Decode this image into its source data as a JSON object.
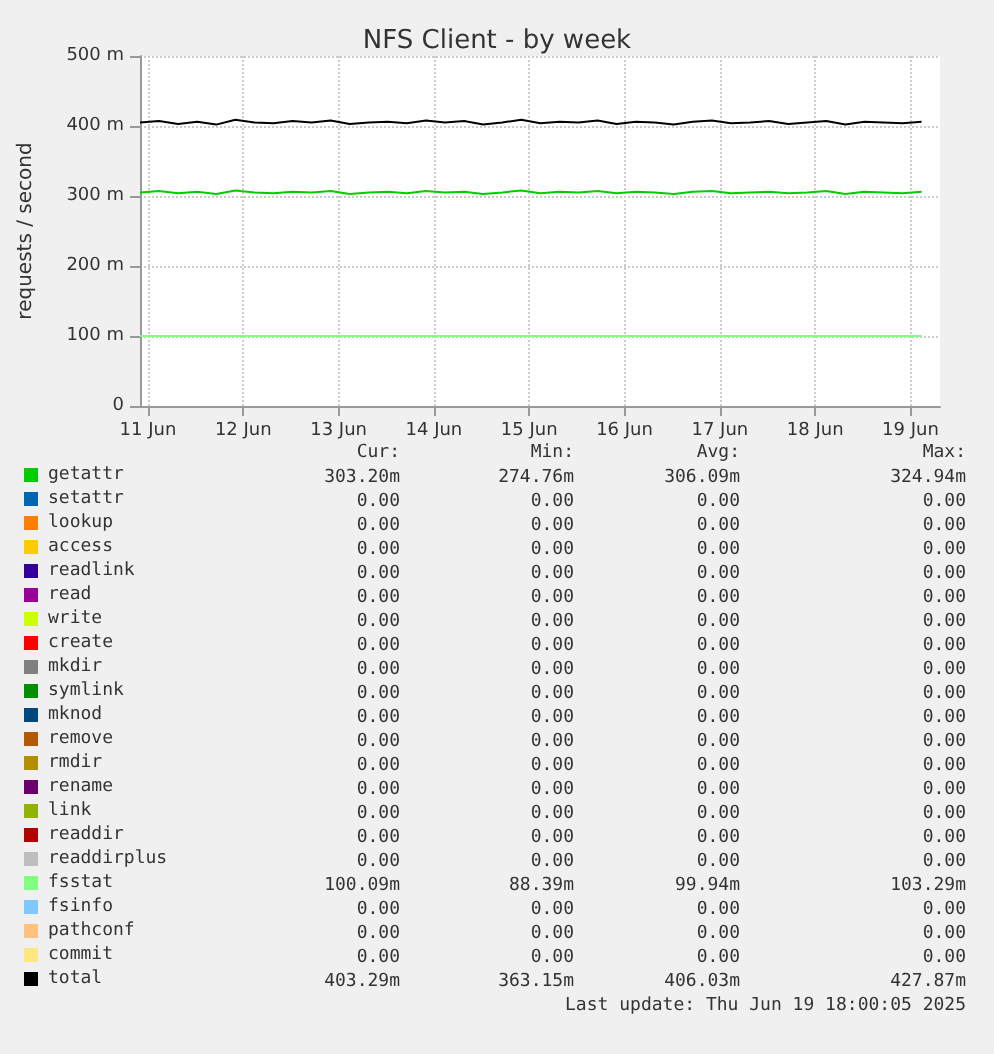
{
  "chart_data": {
    "type": "line",
    "title": "NFS Client - by week",
    "ylabel": "requests / second",
    "x": [
      "--06-10T22:00",
      "--06-11T02:48",
      "--06-11T07:36",
      "--06-11T12:24",
      "--06-11T17:12",
      "--06-11T22:00",
      "--06-12T02:48",
      "--06-12T07:36",
      "--06-12T12:24",
      "--06-12T17:12",
      "--06-12T22:00",
      "--06-13T02:48",
      "--06-13T07:36",
      "--06-13T12:24",
      "--06-13T17:12",
      "--06-13T22:00",
      "--06-14T02:48",
      "--06-14T07:36",
      "--06-14T12:24",
      "--06-14T17:12",
      "--06-14T22:00",
      "--06-15T02:48",
      "--06-15T07:36",
      "--06-15T12:24",
      "--06-15T17:12",
      "--06-15T22:00",
      "--06-16T02:48",
      "--06-16T07:36",
      "--06-16T12:24",
      "--06-16T17:12",
      "--06-16T22:00",
      "--06-17T02:48",
      "--06-17T07:36",
      "--06-17T12:24",
      "--06-17T17:12",
      "--06-17T22:00",
      "--06-18T02:48",
      "--06-18T07:36",
      "--06-18T12:24",
      "--06-18T17:12",
      "--06-18T22:00",
      "--06-19T02:48"
    ],
    "xlim": [
      "--06-10T22:00",
      "--06-19T07:26"
    ],
    "xticks": [
      {
        "value": "--06-11",
        "label": "11 Jun"
      },
      {
        "value": "--06-12",
        "label": "12 Jun"
      },
      {
        "value": "--06-13",
        "label": "13 Jun"
      },
      {
        "value": "--06-14",
        "label": "14 Jun"
      },
      {
        "value": "--06-15",
        "label": "15 Jun"
      },
      {
        "value": "--06-16",
        "label": "16 Jun"
      },
      {
        "value": "--06-17",
        "label": "17 Jun"
      },
      {
        "value": "--06-18",
        "label": "18 Jun"
      },
      {
        "value": "--06-19",
        "label": "19 Jun"
      }
    ],
    "ylim": [
      0,
      500
    ],
    "yticks": [
      0,
      {
        "value": 100,
        "label": "100 m"
      },
      {
        "value": 200,
        "label": "200 m"
      },
      {
        "value": 300,
        "label": "300 m"
      },
      {
        "value": 400,
        "label": "400 m"
      },
      {
        "value": 500,
        "label": "500 m"
      }
    ],
    "grid": true,
    "legend": "bottom",
    "series": [
      {
        "name": "getattr",
        "color": "#00cc00",
        "values": [
          305,
          307,
          304,
          306,
          303,
          308,
          305,
          304,
          306,
          305,
          307,
          303,
          305,
          306,
          304,
          307,
          305,
          306,
          303,
          305,
          308,
          304,
          306,
          305,
          307,
          304,
          306,
          305,
          303,
          306,
          307,
          304,
          305,
          306,
          304,
          305,
          307,
          303,
          306,
          305,
          304,
          306
        ]
      },
      {
        "name": "setattr",
        "color": "#0066b3",
        "values": [
          null,
          null,
          null,
          null,
          null,
          null,
          null,
          null,
          null,
          null,
          null,
          null,
          null,
          null,
          null,
          null,
          null,
          null,
          null,
          null,
          null,
          null,
          null,
          null,
          null,
          null,
          null,
          null,
          null,
          null,
          null,
          null,
          null,
          null,
          null,
          null,
          null,
          null,
          null,
          null,
          null,
          null
        ]
      },
      {
        "name": "lookup",
        "color": "#ff8000",
        "values": [
          null,
          null,
          null,
          null,
          null,
          null,
          null,
          null,
          null,
          null,
          null,
          null,
          null,
          null,
          null,
          null,
          null,
          null,
          null,
          null,
          null,
          null,
          null,
          null,
          null,
          null,
          null,
          null,
          null,
          null,
          null,
          null,
          null,
          null,
          null,
          null,
          null,
          null,
          null,
          null,
          null,
          null
        ]
      },
      {
        "name": "access",
        "color": "#ffcc00",
        "values": [
          null,
          null,
          null,
          null,
          null,
          null,
          null,
          null,
          null,
          null,
          null,
          null,
          null,
          null,
          null,
          null,
          null,
          null,
          null,
          null,
          null,
          null,
          null,
          null,
          null,
          null,
          null,
          null,
          null,
          null,
          null,
          null,
          null,
          null,
          null,
          null,
          null,
          null,
          null,
          null,
          null,
          null
        ]
      },
      {
        "name": "readlink",
        "color": "#330099",
        "values": [
          null,
          null,
          null,
          null,
          null,
          null,
          null,
          null,
          null,
          null,
          null,
          null,
          null,
          null,
          null,
          null,
          null,
          null,
          null,
          null,
          null,
          null,
          null,
          null,
          null,
          null,
          null,
          null,
          null,
          null,
          null,
          null,
          null,
          null,
          null,
          null,
          null,
          null,
          null,
          null,
          null,
          null
        ]
      },
      {
        "name": "read",
        "color": "#990099",
        "values": [
          null,
          null,
          null,
          null,
          null,
          null,
          null,
          null,
          null,
          null,
          null,
          null,
          null,
          null,
          null,
          null,
          null,
          null,
          null,
          null,
          null,
          null,
          null,
          null,
          null,
          null,
          null,
          null,
          null,
          null,
          null,
          null,
          null,
          null,
          null,
          null,
          null,
          null,
          null,
          null,
          null,
          null
        ]
      },
      {
        "name": "write",
        "color": "#ccff00",
        "values": [
          null,
          null,
          null,
          null,
          null,
          null,
          null,
          null,
          null,
          null,
          null,
          null,
          null,
          null,
          null,
          null,
          null,
          null,
          null,
          null,
          null,
          null,
          null,
          null,
          null,
          null,
          null,
          null,
          null,
          null,
          null,
          null,
          null,
          null,
          null,
          null,
          null,
          null,
          null,
          null,
          null,
          null
        ]
      },
      {
        "name": "create",
        "color": "#ff0000",
        "values": [
          null,
          null,
          null,
          null,
          null,
          null,
          null,
          null,
          null,
          null,
          null,
          null,
          null,
          null,
          null,
          null,
          null,
          null,
          null,
          null,
          null,
          null,
          null,
          null,
          null,
          null,
          null,
          null,
          null,
          null,
          null,
          null,
          null,
          null,
          null,
          null,
          null,
          null,
          null,
          null,
          null,
          null
        ]
      },
      {
        "name": "mkdir",
        "color": "#808080",
        "values": [
          null,
          null,
          null,
          null,
          null,
          null,
          null,
          null,
          null,
          null,
          null,
          null,
          null,
          null,
          null,
          null,
          null,
          null,
          null,
          null,
          null,
          null,
          null,
          null,
          null,
          null,
          null,
          null,
          null,
          null,
          null,
          null,
          null,
          null,
          null,
          null,
          null,
          null,
          null,
          null,
          null,
          null
        ]
      },
      {
        "name": "symlink",
        "color": "#008f00",
        "values": [
          null,
          null,
          null,
          null,
          null,
          null,
          null,
          null,
          null,
          null,
          null,
          null,
          null,
          null,
          null,
          null,
          null,
          null,
          null,
          null,
          null,
          null,
          null,
          null,
          null,
          null,
          null,
          null,
          null,
          null,
          null,
          null,
          null,
          null,
          null,
          null,
          null,
          null,
          null,
          null,
          null,
          null
        ]
      },
      {
        "name": "mknod",
        "color": "#00487d",
        "values": [
          null,
          null,
          null,
          null,
          null,
          null,
          null,
          null,
          null,
          null,
          null,
          null,
          null,
          null,
          null,
          null,
          null,
          null,
          null,
          null,
          null,
          null,
          null,
          null,
          null,
          null,
          null,
          null,
          null,
          null,
          null,
          null,
          null,
          null,
          null,
          null,
          null,
          null,
          null,
          null,
          null,
          null
        ]
      },
      {
        "name": "remove",
        "color": "#b35a00",
        "values": [
          null,
          null,
          null,
          null,
          null,
          null,
          null,
          null,
          null,
          null,
          null,
          null,
          null,
          null,
          null,
          null,
          null,
          null,
          null,
          null,
          null,
          null,
          null,
          null,
          null,
          null,
          null,
          null,
          null,
          null,
          null,
          null,
          null,
          null,
          null,
          null,
          null,
          null,
          null,
          null,
          null,
          null
        ]
      },
      {
        "name": "rmdir",
        "color": "#b38f00",
        "values": [
          null,
          null,
          null,
          null,
          null,
          null,
          null,
          null,
          null,
          null,
          null,
          null,
          null,
          null,
          null,
          null,
          null,
          null,
          null,
          null,
          null,
          null,
          null,
          null,
          null,
          null,
          null,
          null,
          null,
          null,
          null,
          null,
          null,
          null,
          null,
          null,
          null,
          null,
          null,
          null,
          null,
          null
        ]
      },
      {
        "name": "rename",
        "color": "#6b006b",
        "values": [
          null,
          null,
          null,
          null,
          null,
          null,
          null,
          null,
          null,
          null,
          null,
          null,
          null,
          null,
          null,
          null,
          null,
          null,
          null,
          null,
          null,
          null,
          null,
          null,
          null,
          null,
          null,
          null,
          null,
          null,
          null,
          null,
          null,
          null,
          null,
          null,
          null,
          null,
          null,
          null,
          null,
          null
        ]
      },
      {
        "name": "link",
        "color": "#8fb300",
        "values": [
          null,
          null,
          null,
          null,
          null,
          null,
          null,
          null,
          null,
          null,
          null,
          null,
          null,
          null,
          null,
          null,
          null,
          null,
          null,
          null,
          null,
          null,
          null,
          null,
          null,
          null,
          null,
          null,
          null,
          null,
          null,
          null,
          null,
          null,
          null,
          null,
          null,
          null,
          null,
          null,
          null,
          null
        ]
      },
      {
        "name": "readdir",
        "color": "#b30000",
        "values": [
          null,
          null,
          null,
          null,
          null,
          null,
          null,
          null,
          null,
          null,
          null,
          null,
          null,
          null,
          null,
          null,
          null,
          null,
          null,
          null,
          null,
          null,
          null,
          null,
          null,
          null,
          null,
          null,
          null,
          null,
          null,
          null,
          null,
          null,
          null,
          null,
          null,
          null,
          null,
          null,
          null,
          null
        ]
      },
      {
        "name": "readdirplus",
        "color": "#bebebe",
        "values": [
          null,
          null,
          null,
          null,
          null,
          null,
          null,
          null,
          null,
          null,
          null,
          null,
          null,
          null,
          null,
          null,
          null,
          null,
          null,
          null,
          null,
          null,
          null,
          null,
          null,
          null,
          null,
          null,
          null,
          null,
          null,
          null,
          null,
          null,
          null,
          null,
          null,
          null,
          null,
          null,
          null,
          null
        ]
      },
      {
        "name": "fsstat",
        "color": "#80ff80",
        "values": [
          100,
          100,
          100,
          100,
          100,
          100,
          100,
          100,
          100,
          100,
          100,
          100,
          100,
          100,
          100,
          100,
          100,
          100,
          100,
          100,
          100,
          100,
          100,
          100,
          100,
          100,
          100,
          100,
          100,
          100,
          100,
          100,
          100,
          100,
          100,
          100,
          100,
          100,
          100,
          100,
          100,
          100
        ]
      },
      {
        "name": "fsinfo",
        "color": "#80c9ff",
        "values": [
          null,
          null,
          null,
          null,
          null,
          null,
          null,
          null,
          null,
          null,
          null,
          null,
          null,
          null,
          null,
          null,
          null,
          null,
          null,
          null,
          null,
          null,
          null,
          null,
          null,
          null,
          null,
          null,
          null,
          null,
          null,
          null,
          null,
          null,
          null,
          null,
          null,
          null,
          null,
          null,
          null,
          null
        ]
      },
      {
        "name": "pathconf",
        "color": "#ffc080",
        "values": [
          null,
          null,
          null,
          null,
          null,
          null,
          null,
          null,
          null,
          null,
          null,
          null,
          null,
          null,
          null,
          null,
          null,
          null,
          null,
          null,
          null,
          null,
          null,
          null,
          null,
          null,
          null,
          null,
          null,
          null,
          null,
          null,
          null,
          null,
          null,
          null,
          null,
          null,
          null,
          null,
          null,
          null
        ]
      },
      {
        "name": "commit",
        "color": "#ffe680",
        "values": [
          null,
          null,
          null,
          null,
          null,
          null,
          null,
          null,
          null,
          null,
          null,
          null,
          null,
          null,
          null,
          null,
          null,
          null,
          null,
          null,
          null,
          null,
          null,
          null,
          null,
          null,
          null,
          null,
          null,
          null,
          null,
          null,
          null,
          null,
          null,
          null,
          null,
          null,
          null,
          null,
          null,
          null
        ]
      },
      {
        "name": "total",
        "color": "#000000",
        "values": [
          405,
          407,
          403,
          406,
          402,
          409,
          405,
          404,
          407,
          405,
          408,
          403,
          405,
          406,
          404,
          408,
          405,
          407,
          402,
          405,
          409,
          404,
          406,
          405,
          408,
          403,
          406,
          405,
          402,
          406,
          408,
          404,
          405,
          407,
          403,
          405,
          407,
          402,
          406,
          405,
          404,
          406
        ]
      }
    ],
    "annotations": [
      "Cur:",
      "Min:",
      "Avg:",
      "Max:",
      "303.20m",
      "274.76m",
      "306.09m",
      "324.94m",
      "0.00",
      "0.00",
      "0.00",
      "0.00",
      "0.00",
      "0.00",
      "0.00",
      "0.00",
      "0.00",
      "0.00",
      "0.00",
      "0.00",
      "0.00",
      "0.00",
      "0.00",
      "0.00",
      "0.00",
      "0.00",
      "0.00",
      "0.00",
      "0.00",
      "0.00",
      "0.00",
      "0.00",
      "0.00",
      "0.00",
      "0.00",
      "0.00",
      "0.00",
      "0.00",
      "0.00",
      "0.00",
      "0.00",
      "0.00",
      "0.00",
      "0.00",
      "0.00",
      "0.00",
      "0.00",
      "0.00",
      "0.00",
      "0.00",
      "0.00",
      "0.00",
      "0.00",
      "0.00",
      "0.00",
      "0.00",
      "0.00",
      "0.00",
      "0.00",
      "0.00",
      "0.00",
      "0.00",
      "0.00",
      "0.00",
      "0.00",
      "0.00",
      "0.00",
      "0.00",
      "0.00",
      "0.00",
      "0.00",
      "0.00",
      "100.09m",
      "88.39m",
      "99.94m",
      "103.29m",
      "0.00",
      "0.00",
      "0.00",
      "0.00",
      "0.00",
      "0.00",
      "0.00",
      "0.00",
      "0.00",
      "0.00",
      "0.00",
      "0.00",
      "403.29m",
      "363.15m",
      "406.03m",
      "427.87m",
      "Last update: Thu Jun 19 18:00:05 2025"
    ]
  }
}
